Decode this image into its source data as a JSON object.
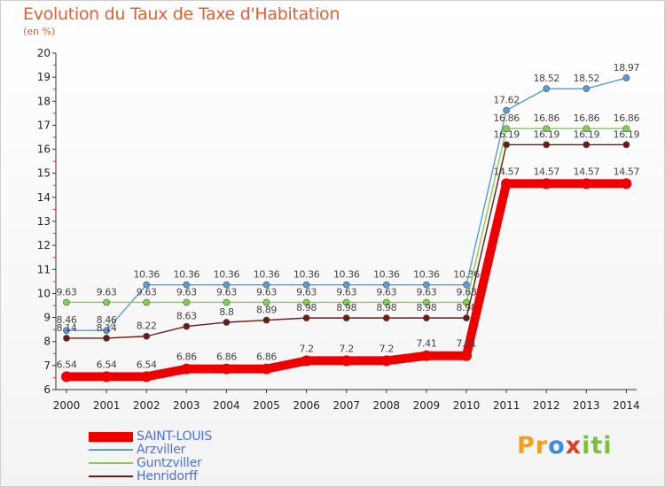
{
  "chart_data": {
    "type": "line",
    "title": "Evolution du Taux de Taxe d'Habitation",
    "subtitle": "(en %)",
    "x": [
      "2000",
      "2001",
      "2002",
      "2003",
      "2004",
      "2005",
      "2006",
      "2007",
      "2008",
      "2009",
      "2010",
      "2011",
      "2012",
      "2013",
      "2014"
    ],
    "ylim": [
      6,
      20
    ],
    "yticks": [
      6,
      7,
      8,
      9,
      10,
      11,
      12,
      13,
      14,
      15,
      16,
      17,
      18,
      19,
      20
    ],
    "grid": false,
    "legend_position": "bottom-left",
    "series": [
      {
        "name": "Arzviller",
        "color": "#5b9bd5",
        "values": [
          8.46,
          8.46,
          10.36,
          10.36,
          10.36,
          10.36,
          10.36,
          10.36,
          10.36,
          10.36,
          10.36,
          17.62,
          18.52,
          18.52,
          18.97
        ],
        "labels": [
          "8.46",
          "8.46",
          "10.36",
          "10.36",
          "10.36",
          "10.36",
          "10.36",
          "10.36",
          "10.36",
          "10.36",
          "10.36",
          "17.62",
          "18.52",
          "18.52",
          "18.97"
        ]
      },
      {
        "name": "Guntzviller",
        "color": "#7fd14b",
        "values": [
          9.63,
          9.63,
          9.63,
          9.63,
          9.63,
          9.63,
          9.63,
          9.63,
          9.63,
          9.63,
          9.63,
          16.86,
          16.86,
          16.86,
          16.86
        ],
        "labels": [
          "9.63",
          "9.63",
          "9.63",
          "9.63",
          "9.63",
          "9.63",
          "9.63",
          "9.63",
          "9.63",
          "9.63",
          "9.63",
          "16.86",
          "16.86",
          "16.86",
          "16.86"
        ]
      },
      {
        "name": "Henridorff",
        "color": "#6b1a1a",
        "values": [
          8.14,
          8.14,
          8.22,
          8.63,
          8.8,
          8.89,
          8.98,
          8.98,
          8.98,
          8.98,
          8.98,
          16.19,
          16.19,
          16.19,
          16.19
        ],
        "labels": [
          "8.14",
          "8.14",
          "8.22",
          "8.63",
          "8.8",
          "8.89",
          "8.98",
          "8.98",
          "8.98",
          "8.98",
          "8.98",
          "16.19",
          "16.19",
          "16.19",
          "16.19"
        ]
      },
      {
        "name": "SAINT-LOUIS",
        "color": "#ee0000",
        "values": [
          6.54,
          6.54,
          6.54,
          6.86,
          6.86,
          6.86,
          7.2,
          7.2,
          7.2,
          7.41,
          7.41,
          14.57,
          14.57,
          14.57,
          14.57
        ],
        "labels": [
          "6.54",
          "6.54",
          "6.54",
          "6.86",
          "6.86",
          "6.86",
          "7.2",
          "7.2",
          "7.2",
          "7.41",
          "7.41",
          "14.57",
          "14.57",
          "14.57",
          "14.57"
        ]
      }
    ]
  },
  "legend": [
    {
      "name": "SAINT-LOUIS",
      "color": "#ee0000",
      "thick": true
    },
    {
      "name": "Arzviller",
      "color": "#5b9bd5",
      "thick": false
    },
    {
      "name": "Guntzviller",
      "color": "#7fd14b",
      "thick": false
    },
    {
      "name": "Henridorff",
      "color": "#6b1a1a",
      "thick": false
    }
  ],
  "logo": {
    "p1": "Pr",
    "p2": "o",
    "p3": "x",
    "p4": "iti"
  }
}
